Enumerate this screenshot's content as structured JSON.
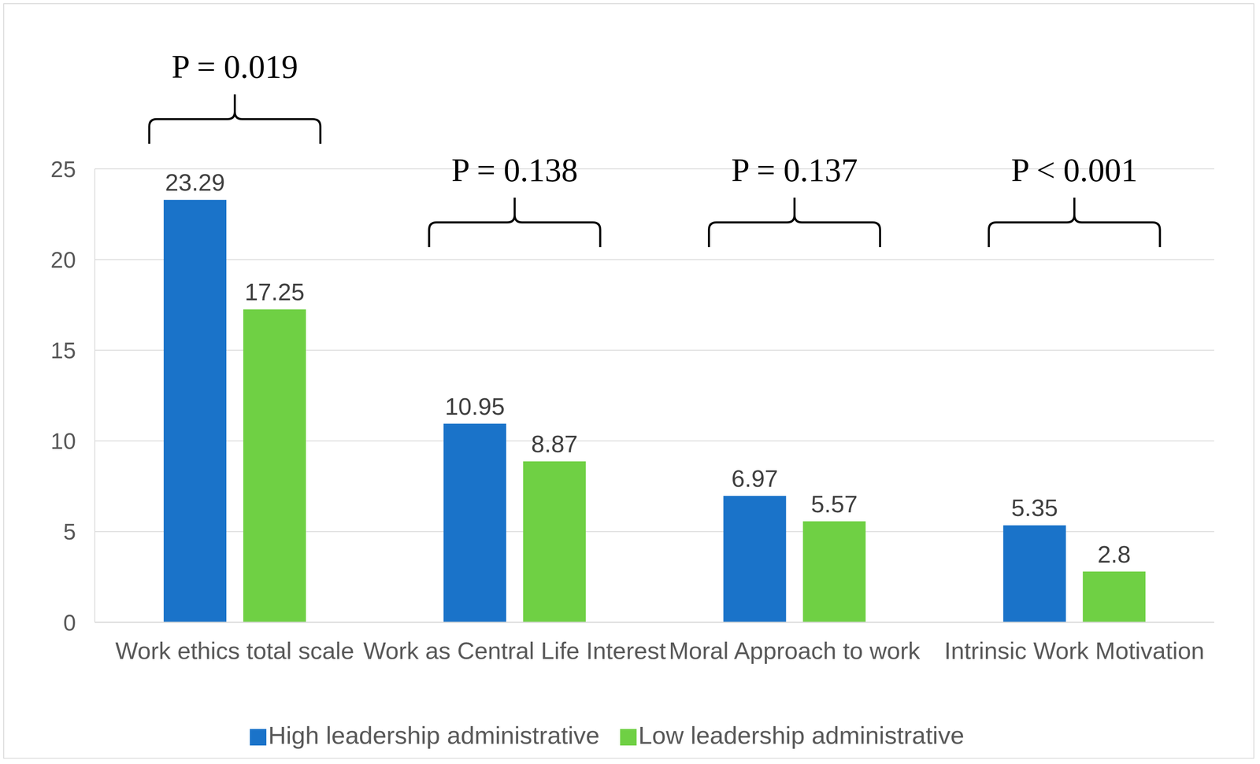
{
  "chart_data": {
    "type": "bar",
    "categories": [
      "Work ethics total scale",
      "Work as Central Life Interest",
      "Moral Approach to work",
      "Intrinsic Work Motivation"
    ],
    "series": [
      {
        "name": "High leadership administrative",
        "color": "#1a73c9",
        "values": [
          23.29,
          10.95,
          6.97,
          5.35
        ]
      },
      {
        "name": "Low leadership administrative",
        "color": "#6fd044",
        "values": [
          17.25,
          8.87,
          5.57,
          2.8
        ]
      }
    ],
    "ylim": [
      0,
      25
    ],
    "yticks": [
      0,
      5,
      10,
      15,
      20,
      25
    ],
    "grid": true,
    "data_labels": true,
    "legend": "bottom",
    "annotations": [
      "P = 0.019",
      "P = 0.138",
      "P = 0.137",
      "P < 0.001"
    ]
  }
}
